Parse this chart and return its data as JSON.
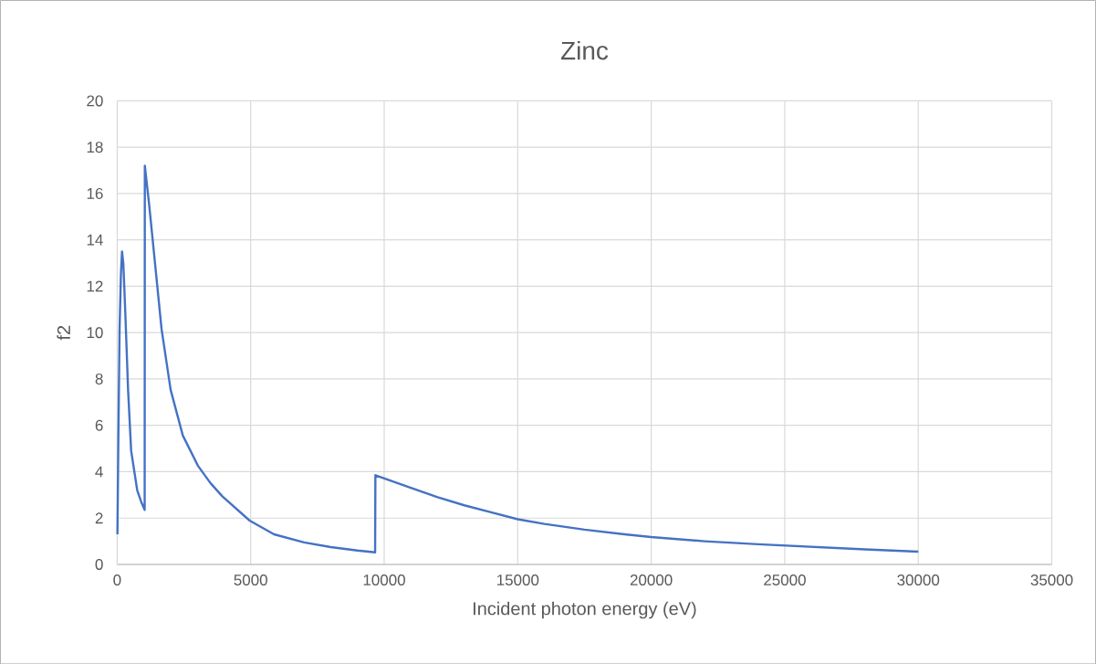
{
  "chart_data": {
    "type": "line",
    "title": "Zinc",
    "xlabel": "Incident photon energy (eV)",
    "ylabel": "f2",
    "x": [
      10,
      45,
      91,
      140,
      182,
      230,
      300,
      410,
      524,
      751,
      900,
      1030,
      1036,
      1200,
      1434,
      1662,
      2003,
      2459,
      3028,
      3500,
      3937,
      4962,
      5873,
      7000,
      8000,
      9000,
      9660,
      9670,
      11000,
      12000,
      13000,
      14000,
      15000,
      16000,
      17500,
      19000,
      20000,
      22000,
      24000,
      26000,
      28000,
      30000
    ],
    "values": [
      1.3,
      5.5,
      10.2,
      12.5,
      13.5,
      13.0,
      11.0,
      7.5,
      4.9,
      3.2,
      2.7,
      2.35,
      17.2,
      15.5,
      12.8,
      10.16,
      7.53,
      5.56,
      4.25,
      3.5,
      2.94,
      1.89,
      1.3,
      0.95,
      0.75,
      0.6,
      0.52,
      3.85,
      3.3,
      2.9,
      2.55,
      2.25,
      1.95,
      1.75,
      1.5,
      1.3,
      1.18,
      1.0,
      0.87,
      0.76,
      0.65,
      0.55
    ],
    "color": "#4472c4",
    "xlim": [
      0,
      35000
    ],
    "ylim": [
      0,
      20
    ],
    "xticks": [
      0,
      5000,
      10000,
      15000,
      20000,
      25000,
      30000,
      35000
    ],
    "yticks": [
      0,
      2,
      4,
      6,
      8,
      10,
      12,
      14,
      16,
      18,
      20
    ],
    "grid": true
  }
}
